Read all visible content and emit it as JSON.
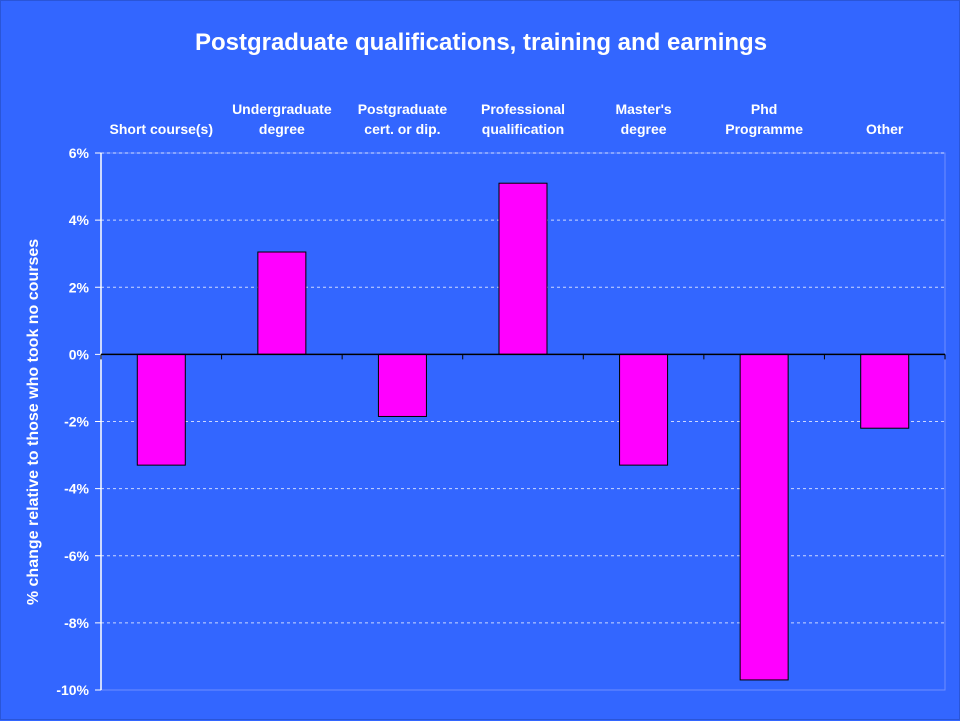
{
  "colors": {
    "background": "#3366ff",
    "bar": "#ff00ff",
    "text": "#ffffff"
  },
  "chart_data": {
    "type": "bar",
    "title": "Postgraduate qualifications, training and earnings",
    "ylabel": "% change relative to those who took no courses",
    "xlabel": "",
    "categories": [
      [
        "Short course(s)"
      ],
      [
        "Undergraduate",
        "degree"
      ],
      [
        "Postgraduate",
        "cert. or dip."
      ],
      [
        "Professional",
        "qualification"
      ],
      [
        "Master's",
        "degree"
      ],
      [
        "Phd",
        "Programme"
      ],
      [
        "Other"
      ]
    ],
    "values": [
      -3.3,
      3.05,
      -1.85,
      5.1,
      -3.3,
      -9.7,
      -2.2
    ],
    "ylim": [
      -10,
      6
    ],
    "yticks": [
      6,
      4,
      2,
      0,
      -2,
      -4,
      -6,
      -8,
      -10
    ],
    "ytick_labels": [
      "6%",
      "4%",
      "2%",
      "0%",
      "-2%",
      "-4%",
      "-6%",
      "-8%",
      "-10%"
    ],
    "grid": true,
    "category_labels_position": "top"
  }
}
